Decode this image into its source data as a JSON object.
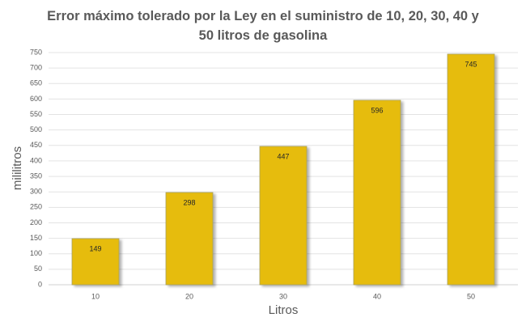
{
  "chart_data": {
    "type": "bar",
    "title": "Error máximo tolerado por la Ley en el suministro de 10, 20, 30, 40 y 50 litros de gasolina",
    "x_label": "Litros",
    "y_label": "mililitros",
    "categories": [
      "10",
      "20",
      "30",
      "40",
      "50"
    ],
    "values": [
      149,
      298,
      447,
      596,
      745
    ],
    "color": "#e6bc0f",
    "ylim": [
      0,
      750
    ],
    "yticks": [
      0,
      50,
      100,
      150,
      200,
      250,
      300,
      350,
      400,
      450,
      500,
      550,
      600,
      650,
      700,
      750
    ],
    "grid": true
  }
}
